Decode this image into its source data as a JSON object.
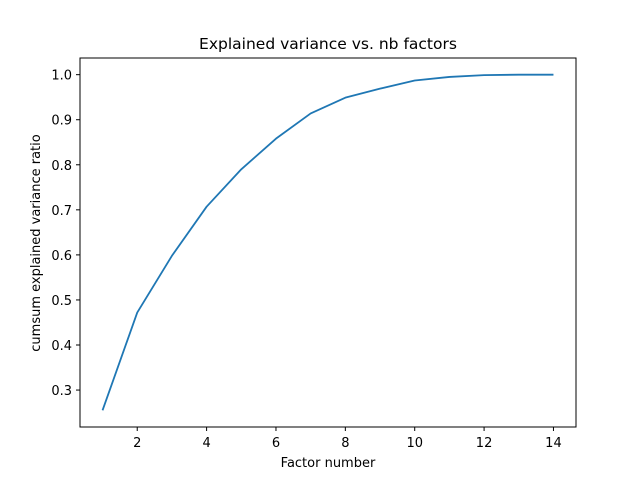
{
  "chart_data": {
    "type": "line",
    "title": "Explained variance vs. nb factors",
    "xlabel": "Factor number",
    "ylabel": "cumsum explained variance ratio",
    "xlim": [
      0.35,
      14.65
    ],
    "ylim": [
      0.218,
      1.037
    ],
    "xticks": [
      2,
      4,
      6,
      8,
      10,
      12,
      14
    ],
    "xtick_labels": [
      "2",
      "4",
      "6",
      "8",
      "10",
      "12",
      "14"
    ],
    "yticks": [
      0.3,
      0.4,
      0.5,
      0.6,
      0.7,
      0.8,
      0.9,
      1.0
    ],
    "ytick_labels": [
      "0.3",
      "0.4",
      "0.5",
      "0.6",
      "0.7",
      "0.8",
      "0.9",
      "1.0"
    ],
    "grid": false,
    "series": [
      {
        "color": "#1f77b4",
        "x": [
          1,
          2,
          3,
          4,
          5,
          6,
          7,
          8,
          9,
          10,
          11,
          12,
          13,
          14
        ],
        "y": [
          0.255,
          0.472,
          0.598,
          0.707,
          0.79,
          0.858,
          0.914,
          0.949,
          0.969,
          0.987,
          0.995,
          0.999,
          1.0,
          1.0
        ]
      }
    ]
  }
}
